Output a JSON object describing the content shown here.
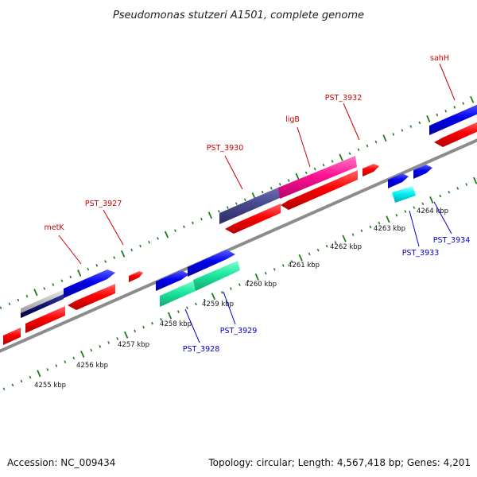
{
  "title": "Pseudomonas stutzeri A1501, complete genome",
  "footer": {
    "accession": "Accession: NC_009434",
    "summary": "Topology: circular; Length: 4,567,418 bp; Genes: 4,201"
  },
  "colors": {
    "backbone": "#8c8c8c",
    "tick": "#1e7a1e",
    "cds": "#ff0000",
    "forward_gene": "#0000e0",
    "label_top": "#cc0000",
    "label_bottom": "#0000cc"
  },
  "scale_labels": [
    "4255 kbp",
    "4256 kbp",
    "4257 kbp",
    "4258 kbp",
    "4259 kbp",
    "4260 kbp",
    "4261 kbp",
    "4262 kbp",
    "4263 kbp",
    "4264 kbp"
  ],
  "gene_labels_top": [
    "metK",
    "PST_3927",
    "PST_3930",
    "ligB",
    "PST_3932",
    "sahH"
  ],
  "gene_labels_bottom": [
    "PST_3928",
    "PST_3929",
    "PST_3933",
    "PST_3934"
  ]
}
